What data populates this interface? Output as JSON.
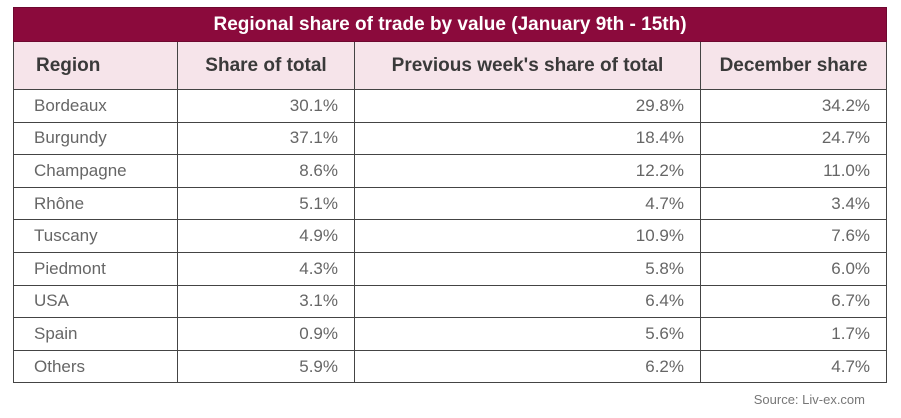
{
  "chart_data": {
    "type": "table",
    "title": "Regional share of trade by value (January 9th - 15th)",
    "columns": [
      "Region",
      "Share of total",
      "Previous week's share of total",
      "December share"
    ],
    "rows": [
      [
        "Bordeaux",
        "30.1%",
        "29.8%",
        "34.2%"
      ],
      [
        "Burgundy",
        "37.1%",
        "18.4%",
        "24.7%"
      ],
      [
        "Champagne",
        "8.6%",
        "12.2%",
        "11.0%"
      ],
      [
        "Rhône",
        "5.1%",
        "4.7%",
        "3.4%"
      ],
      [
        "Tuscany",
        "4.9%",
        "10.9%",
        "7.6%"
      ],
      [
        "Piedmont",
        "4.3%",
        "5.8%",
        "6.0%"
      ],
      [
        "USA",
        "3.1%",
        "6.4%",
        "6.7%"
      ],
      [
        "Spain",
        "0.9%",
        "5.6%",
        "1.7%"
      ],
      [
        "Others",
        "5.9%",
        "6.2%",
        "4.7%"
      ]
    ],
    "source": "Source: Liv-ex.com"
  }
}
